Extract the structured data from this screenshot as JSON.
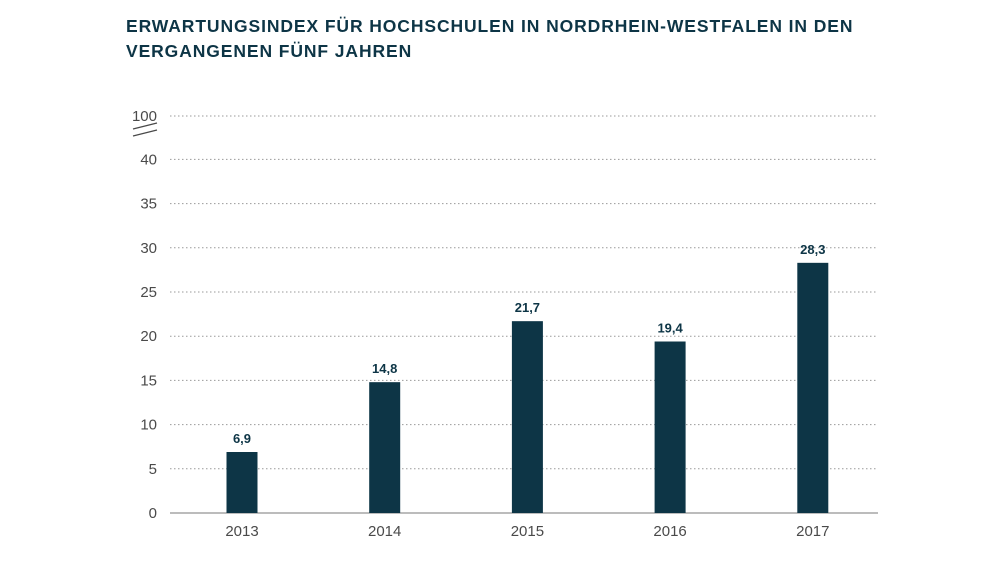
{
  "chart_data": {
    "type": "bar",
    "title_lines": [
      "ERWARTUNGSINDEX FÜR HOCHSCHULEN IN NORDRHEIN-WESTFALEN IN DEN",
      "VERGANGENEN FÜNF JAHREN"
    ],
    "categories": [
      "2013",
      "2014",
      "2015",
      "2016",
      "2017"
    ],
    "values": [
      6.9,
      14.8,
      21.7,
      19.4,
      28.3
    ],
    "value_labels": [
      "6,9",
      "14,8",
      "21,7",
      "19,4",
      "28,3"
    ],
    "y_ticks": [
      "0",
      "5",
      "10",
      "15",
      "20",
      "25",
      "30",
      "35",
      "40",
      "100"
    ],
    "ylim": [
      0,
      40
    ],
    "axis_break": "40-100",
    "grid": "dotted horizontal",
    "bar_color": "#0d3546"
  }
}
